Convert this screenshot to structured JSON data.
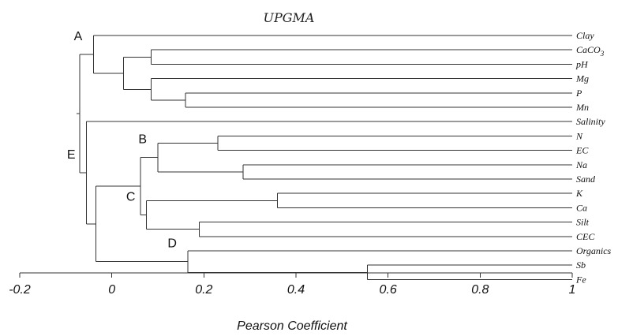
{
  "title": "UPGMA",
  "axis": {
    "label": "Pearson Coefficient",
    "min": -0.2,
    "max": 1,
    "ticks": [
      {
        "value": -0.2,
        "label": "-0.2"
      },
      {
        "value": 0,
        "label": "0"
      },
      {
        "value": 0.2,
        "label": "0.2"
      },
      {
        "value": 0.4,
        "label": "0.4"
      },
      {
        "value": 0.6,
        "label": "0.6"
      },
      {
        "value": 0.8,
        "label": "0.8"
      },
      {
        "value": 1,
        "label": "1"
      }
    ]
  },
  "leaves": [
    {
      "id": "clay",
      "label": "Clay"
    },
    {
      "id": "caco3",
      "label": "CaCO",
      "sub": "3"
    },
    {
      "id": "ph",
      "label": "pH"
    },
    {
      "id": "mg",
      "label": "Mg"
    },
    {
      "id": "p",
      "label": "P"
    },
    {
      "id": "mn",
      "label": "Mn"
    },
    {
      "id": "salinity",
      "label": "Salinity"
    },
    {
      "id": "n",
      "label": "N"
    },
    {
      "id": "ec",
      "label": "EC"
    },
    {
      "id": "na",
      "label": "Na"
    },
    {
      "id": "sand",
      "label": "Sand"
    },
    {
      "id": "k",
      "label": "K"
    },
    {
      "id": "ca",
      "label": "Ca"
    },
    {
      "id": "silt",
      "label": "Silt"
    },
    {
      "id": "cec",
      "label": "CEC"
    },
    {
      "id": "organics",
      "label": "Organics"
    },
    {
      "id": "sb",
      "label": "Sb"
    },
    {
      "id": "fe",
      "label": "Fe"
    }
  ],
  "merges": [
    {
      "id": "m_caco3_ph",
      "children": [
        "caco3",
        "ph"
      ],
      "value": 0.085
    },
    {
      "id": "m_p_mn",
      "children": [
        "p",
        "mn"
      ],
      "value": 0.16
    },
    {
      "id": "m_mg_pmn",
      "children": [
        "mg",
        "m_p_mn"
      ],
      "value": 0.085
    },
    {
      "id": "m_top6",
      "children": [
        "m_caco3_ph",
        "m_mg_pmn"
      ],
      "value": 0.025
    },
    {
      "id": "m_A",
      "children": [
        "clay",
        "m_top6"
      ],
      "value": -0.04
    },
    {
      "id": "m_n_ec",
      "children": [
        "n",
        "ec"
      ],
      "value": 0.23
    },
    {
      "id": "m_na_sand",
      "children": [
        "na",
        "sand"
      ],
      "value": 0.285
    },
    {
      "id": "m_B",
      "children": [
        "m_n_ec",
        "m_na_sand"
      ],
      "value": 0.1
    },
    {
      "id": "m_k_ca",
      "children": [
        "k",
        "ca"
      ],
      "value": 0.36
    },
    {
      "id": "m_silt_cec",
      "children": [
        "silt",
        "cec"
      ],
      "value": 0.19
    },
    {
      "id": "m_C",
      "children": [
        "m_k_ca",
        "m_silt_cec"
      ],
      "value": 0.075
    },
    {
      "id": "m_BC",
      "children": [
        "m_B",
        "m_C"
      ],
      "value": 0.062
    },
    {
      "id": "m_sb_fe",
      "children": [
        "sb",
        "fe"
      ],
      "value": 0.555
    },
    {
      "id": "m_D",
      "children": [
        "organics",
        "m_sb_fe"
      ],
      "value": 0.165
    },
    {
      "id": "m_BCD",
      "children": [
        "m_BC",
        "m_D"
      ],
      "value": -0.035
    },
    {
      "id": "m_E",
      "children": [
        "salinity",
        "m_BCD"
      ],
      "value": -0.055
    },
    {
      "id": "m_root",
      "children": [
        "m_A",
        "m_E"
      ],
      "value": -0.07
    }
  ],
  "group_labels": [
    {
      "text": "A",
      "anchor": "m_A"
    },
    {
      "text": "E",
      "anchor": "m_E"
    },
    {
      "text": "B",
      "anchor": "m_B"
    },
    {
      "text": "C",
      "anchor": "m_C"
    },
    {
      "text": "D",
      "anchor": "m_D"
    }
  ]
}
